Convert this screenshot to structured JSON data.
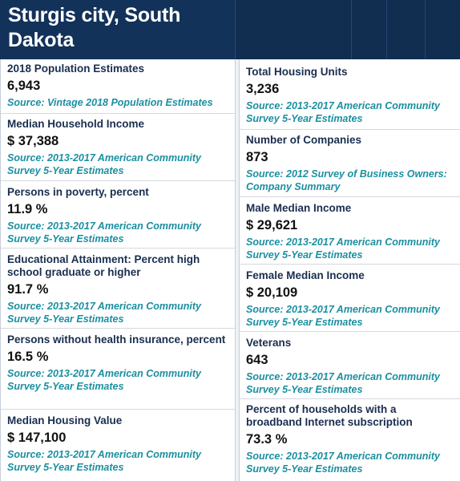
{
  "header": {
    "title": "Sturgis city, South Dakota"
  },
  "left": [
    {
      "label": "2018 Population Estimates",
      "value": "6,943",
      "source": "Source: Vintage 2018 Population Estimates"
    },
    {
      "label": "Median Household Income",
      "value": "$ 37,388",
      "source": "Source: 2013-2017 American Community Survey 5-Year Estimates"
    },
    {
      "label": "Persons in poverty, percent",
      "value": "11.9 %",
      "source": "Source: 2013-2017 American Community Survey 5-Year Estimates"
    },
    {
      "label": "Educational Attainment: Percent high school graduate or higher",
      "value": "91.7 %",
      "source": "Source: 2013-2017 American Community Survey 5-Year Estimates"
    },
    {
      "label": "Persons without health insurance, percent",
      "value": "16.5 %",
      "source": "Source: 2013-2017 American Community Survey 5-Year Estimates"
    },
    {
      "label": "Median Housing Value",
      "value": "$ 147,100",
      "source": "Source: 2013-2017 American Community Survey 5-Year Estimates"
    }
  ],
  "right": [
    {
      "label": "Total Housing Units",
      "value": "3,236",
      "source": "Source: 2013-2017 American Community Survey 5-Year Estimates"
    },
    {
      "label": "Number of Companies",
      "value": "873",
      "source": "Source: 2012 Survey of Business Owners: Company Summary"
    },
    {
      "label": "Male Median Income",
      "value": "$ 29,621",
      "source": "Source: 2013-2017 American Community Survey 5-Year Estimates"
    },
    {
      "label": "Female Median Income",
      "value": "$ 20,109",
      "source": "Source: 2013-2017 American Community Survey 5-Year Estimates"
    },
    {
      "label": "Veterans",
      "value": "643",
      "source": "Source: 2013-2017 American Community Survey 5-Year Estimates"
    },
    {
      "label": "Percent of households with a broadband Internet subscription",
      "value": "73.3 %",
      "source": "Source: 2013-2017 American Community Survey 5-Year Estimates"
    }
  ]
}
